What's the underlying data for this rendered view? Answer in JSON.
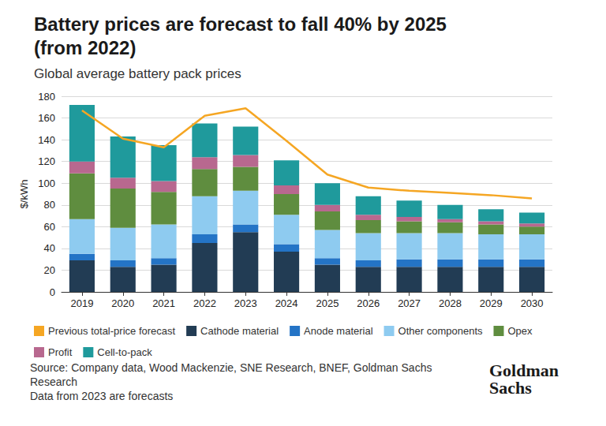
{
  "chart_data": {
    "type": "bar",
    "title": "Battery prices are forecast to fall 40% by 2025\n(from 2022)",
    "subtitle": "Global average battery pack prices",
    "y_label": "$/kWh",
    "source": "Source: Company data, Wood Mackenzie, SNE Research, BNEF, Goldman Sachs Research",
    "note": "Data from 2023 are forecasts",
    "logo": "Goldman\nSachs",
    "categories": [
      "2019",
      "2020",
      "2021",
      "2022",
      "2023",
      "2024",
      "2025",
      "2026",
      "2027",
      "2028",
      "2029",
      "2030"
    ],
    "stacked": true,
    "grid": true,
    "legend": "bottom",
    "ylim": [
      0,
      180
    ],
    "yticks": [
      0,
      20,
      40,
      60,
      80,
      100,
      120,
      140,
      160,
      180
    ],
    "series": [
      {
        "name": "Previous total-price forecast",
        "type": "line",
        "color": "#f5a623",
        "values": [
          167,
          141,
          133,
          162,
          169,
          139,
          108,
          96,
          93,
          91,
          89,
          86
        ]
      },
      {
        "name": "Cathode material",
        "type": "bar",
        "color": "#223c54",
        "values": [
          29,
          23,
          25,
          45,
          55,
          37,
          25,
          23,
          23,
          23,
          23,
          23
        ]
      },
      {
        "name": "Anode material",
        "type": "bar",
        "color": "#2474c6",
        "values": [
          6,
          6,
          6,
          8,
          7,
          7,
          6,
          6,
          7,
          7,
          7,
          7
        ]
      },
      {
        "name": "Other components",
        "type": "bar",
        "color": "#8ecbf0",
        "values": [
          32,
          30,
          31,
          35,
          31,
          27,
          26,
          25,
          24,
          24,
          23,
          23
        ]
      },
      {
        "name": "Opex",
        "type": "bar",
        "color": "#5f8d3f",
        "values": [
          42,
          36,
          30,
          25,
          22,
          19,
          17,
          12,
          11,
          10,
          9,
          7
        ]
      },
      {
        "name": "Profit",
        "type": "bar",
        "color": "#b8688f",
        "values": [
          11,
          10,
          10,
          11,
          11,
          8,
          6,
          5,
          4,
          3,
          3,
          3
        ]
      },
      {
        "name": "Cell-to-pack",
        "type": "bar",
        "color": "#1f9a9c",
        "values": [
          52,
          38,
          33,
          31,
          26,
          23,
          20,
          17,
          15,
          13,
          11,
          10
        ]
      }
    ]
  }
}
